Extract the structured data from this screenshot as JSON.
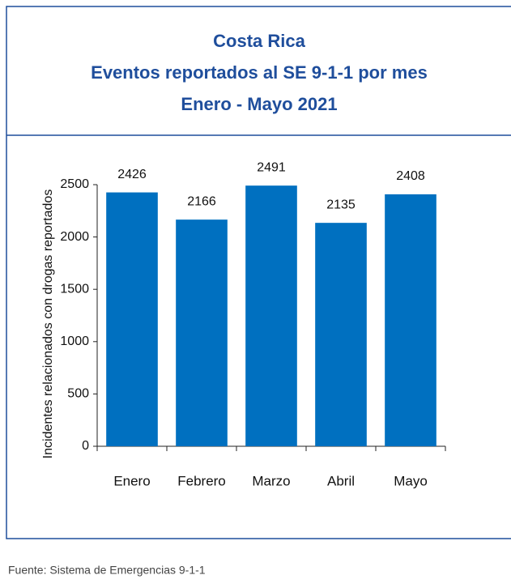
{
  "chart_data": {
    "type": "bar",
    "title": [
      "Costa Rica",
      "Eventos reportados al SE 9-1-1 por mes",
      "Enero - Mayo 2021"
    ],
    "ylabel": "Incidentes relacionados con drogas reportados",
    "categories": [
      "Enero",
      "Febrero",
      "Marzo",
      "Abril",
      "Mayo"
    ],
    "values": [
      2426,
      2166,
      2491,
      2135,
      2408
    ],
    "color": "#0070c0",
    "ylim": [
      0,
      2500
    ],
    "yticks": [
      0,
      500,
      1000,
      1500,
      2000,
      2500
    ],
    "grid": false,
    "source": "Fuente: Sistema de Emergencias 9-1-1"
  }
}
